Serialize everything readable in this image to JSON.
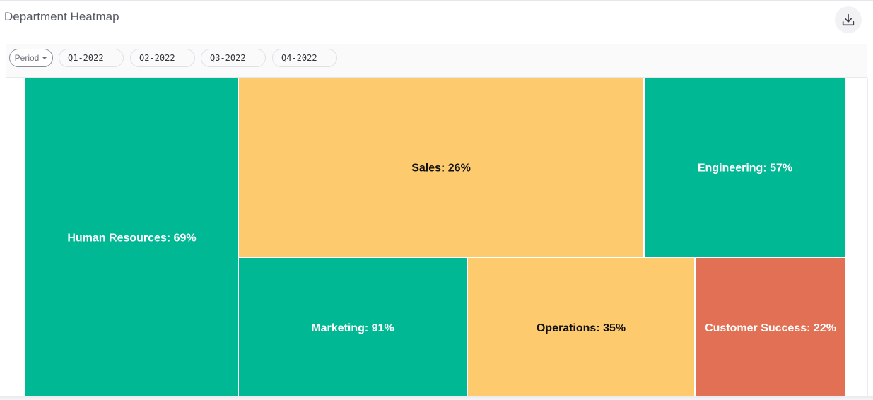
{
  "header": {
    "title": "Department Heatmap",
    "download_icon": "download-icon"
  },
  "filters": {
    "period_label": "Period",
    "chips": [
      "Q1-2022",
      "Q2-2022",
      "Q3-2022",
      "Q4-2022"
    ]
  },
  "colors": {
    "high": "#00b894",
    "medium": "#fdcb6e",
    "low": "#e17055"
  },
  "chart_data": {
    "type": "heatmap",
    "title": "",
    "items": [
      {
        "name": "Human Resources",
        "value": 69,
        "label": "Human Resources: 69%"
      },
      {
        "name": "Sales",
        "value": 26,
        "label": "Sales: 26%"
      },
      {
        "name": "Engineering",
        "value": 57,
        "label": "Engineering: 57%"
      },
      {
        "name": "Marketing",
        "value": 91,
        "label": "Marketing: 91%"
      },
      {
        "name": "Operations",
        "value": 35,
        "label": "Operations: 35%"
      },
      {
        "name": "Customer Success",
        "value": 22,
        "label": "Customer Success: 22%"
      }
    ]
  }
}
